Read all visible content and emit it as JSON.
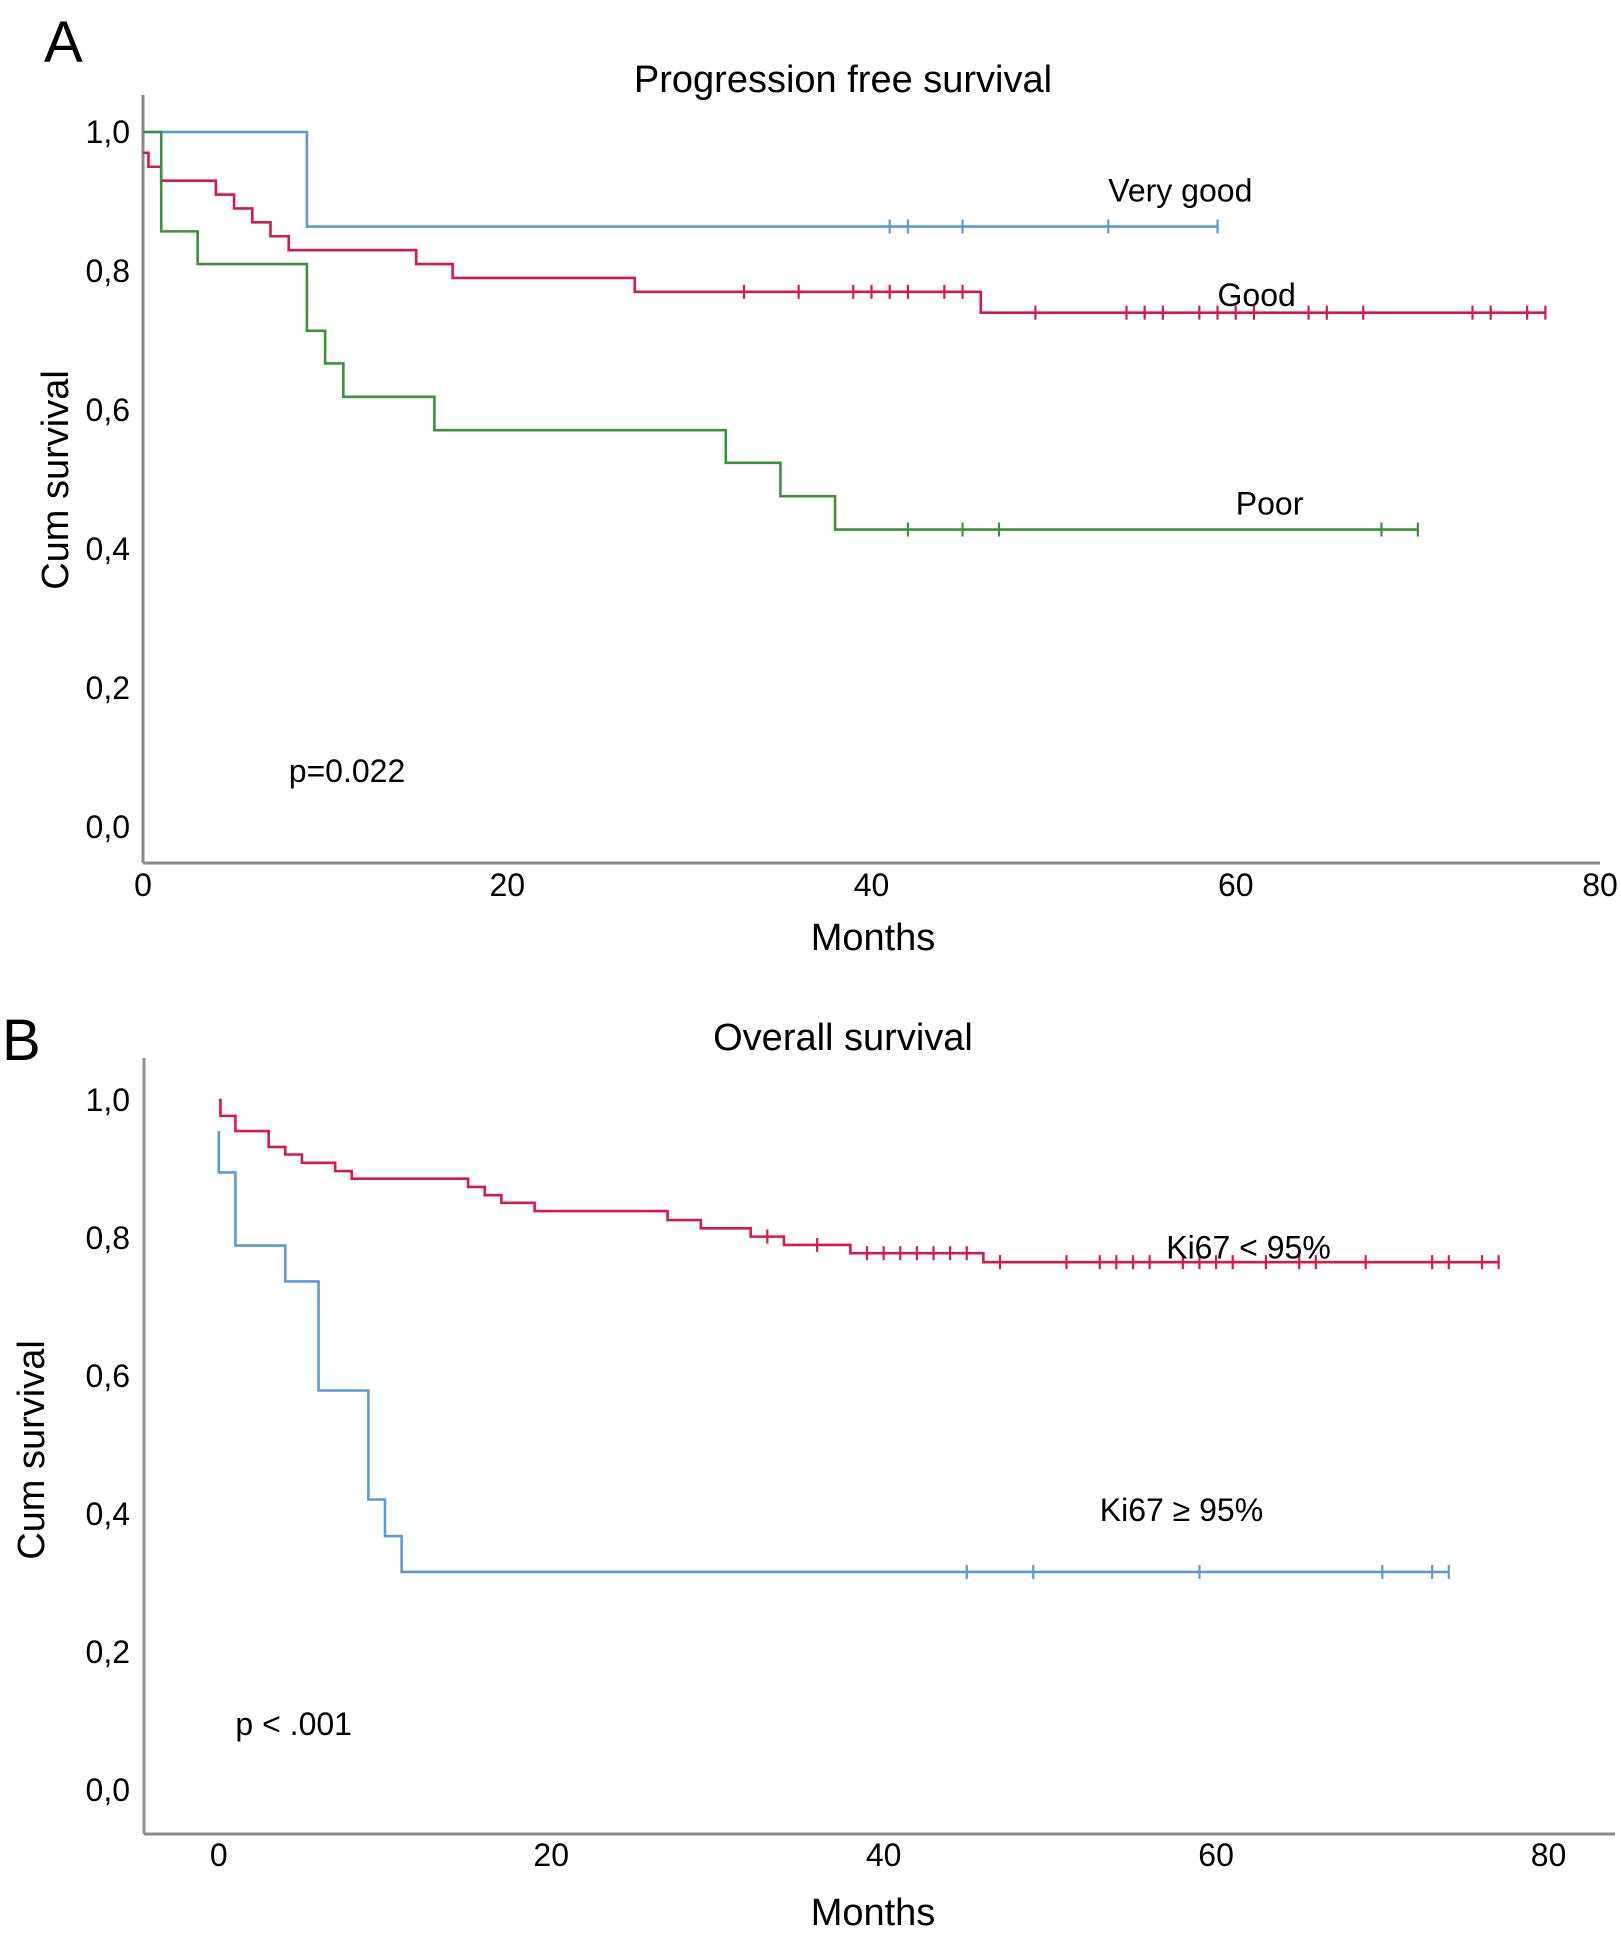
{
  "chart_data": [
    {
      "panel": "A",
      "type": "line",
      "subtype": "kaplan-meier",
      "title": "Progression free survival",
      "xlabel": "Months",
      "ylabel": "Cum survival",
      "xlim": [
        0,
        80
      ],
      "ylim": [
        0,
        1.0
      ],
      "xticks": [
        "0",
        "20",
        "40",
        "60",
        "80"
      ],
      "yticks": [
        "0,0",
        "0,2",
        "0,4",
        "0,6",
        "0,8",
        "1,0"
      ],
      "grid": false,
      "annotations": [
        {
          "text": "p=0.022",
          "x": 8,
          "y": 0.065
        }
      ],
      "series": [
        {
          "name": "Very good",
          "color": "#5b9bd5",
          "label_pos": {
            "x": 53,
            "y": 0.9
          },
          "steps": [
            [
              0,
              1.0
            ],
            [
              9,
              0.864
            ]
          ],
          "end": 59,
          "censored": [
            41,
            42,
            45,
            53,
            59
          ]
        },
        {
          "name": "Good",
          "color": "#d6194b",
          "label_pos": {
            "x": 59,
            "y": 0.75
          },
          "steps": [
            [
              0,
              0.97
            ],
            [
              0.3,
              0.95
            ],
            [
              1,
              0.93
            ],
            [
              4,
              0.91
            ],
            [
              5,
              0.89
            ],
            [
              6,
              0.87
            ],
            [
              7,
              0.85
            ],
            [
              8,
              0.83
            ],
            [
              15,
              0.81
            ],
            [
              17,
              0.79
            ],
            [
              27,
              0.77
            ],
            [
              46,
              0.74
            ]
          ],
          "end": 77,
          "censored": [
            33,
            36,
            39,
            40,
            41,
            42,
            44,
            45,
            49,
            54,
            55,
            56,
            58,
            59,
            60,
            61,
            64,
            65,
            67,
            73,
            74,
            76,
            77
          ]
        },
        {
          "name": "Poor",
          "color": "#3a923a",
          "label_pos": {
            "x": 60,
            "y": 0.45
          },
          "steps": [
            [
              0,
              1.0
            ],
            [
              1,
              0.857
            ],
            [
              3,
              0.81
            ],
            [
              9,
              0.714
            ],
            [
              10,
              0.667
            ],
            [
              11,
              0.619
            ],
            [
              16,
              0.571
            ],
            [
              32,
              0.524
            ],
            [
              35,
              0.476
            ],
            [
              38,
              0.428
            ]
          ],
          "end": 70,
          "censored": [
            42,
            45,
            47,
            68,
            70
          ]
        }
      ]
    },
    {
      "panel": "B",
      "type": "line",
      "subtype": "kaplan-meier",
      "title": "Overall survival",
      "xlabel": "Months",
      "ylabel": "Cum survival",
      "xlim": [
        -4.5,
        84
      ],
      "ylim": [
        0,
        1.0
      ],
      "xticks": [
        "0",
        "20",
        "40",
        "60",
        "80"
      ],
      "yticks": [
        "0,0",
        "0,2",
        "0,4",
        "0,6",
        "0,8",
        "1,0"
      ],
      "grid": false,
      "annotations": [
        {
          "text": "p < .001",
          "x": 1,
          "y": 0.08
        }
      ],
      "series": [
        {
          "name": "Ki67 < 95%",
          "color": "#d6194b",
          "label_pos": {
            "x": 57,
            "y": 0.77
          },
          "steps": [
            [
              0,
              1.0
            ],
            [
              0.1,
              0.977
            ],
            [
              1,
              0.955
            ],
            [
              3,
              0.932
            ],
            [
              4,
              0.921
            ],
            [
              5,
              0.909
            ],
            [
              7,
              0.897
            ],
            [
              8,
              0.886
            ],
            [
              15,
              0.874
            ],
            [
              16,
              0.862
            ],
            [
              17,
              0.851
            ],
            [
              19,
              0.839
            ],
            [
              27,
              0.826
            ],
            [
              29,
              0.814
            ],
            [
              32,
              0.802
            ],
            [
              34,
              0.79
            ],
            [
              38,
              0.778
            ],
            [
              46,
              0.765
            ]
          ],
          "end": 77,
          "censored": [
            33,
            36,
            39,
            40,
            41,
            42,
            43,
            44,
            45,
            47,
            51,
            53,
            54,
            55,
            56,
            58,
            59,
            60,
            61,
            63,
            65,
            66,
            69,
            73,
            74,
            76,
            77
          ]
        },
        {
          "name": "Ki67 ≥ 95%",
          "color": "#5b9bd5",
          "label_pos": {
            "x": 53,
            "y": 0.39
          },
          "steps": [
            [
              0,
              0.955
            ],
            [
              0,
              0.895
            ],
            [
              1,
              0.789
            ],
            [
              4,
              0.737
            ],
            [
              6,
              0.579
            ],
            [
              9,
              0.421
            ],
            [
              10,
              0.368
            ],
            [
              11,
              0.316
            ]
          ],
          "end": 74,
          "censored": [
            45,
            49,
            59,
            70,
            73,
            74
          ]
        }
      ]
    }
  ],
  "labels": {
    "panel_a": "A",
    "panel_b": "B"
  }
}
